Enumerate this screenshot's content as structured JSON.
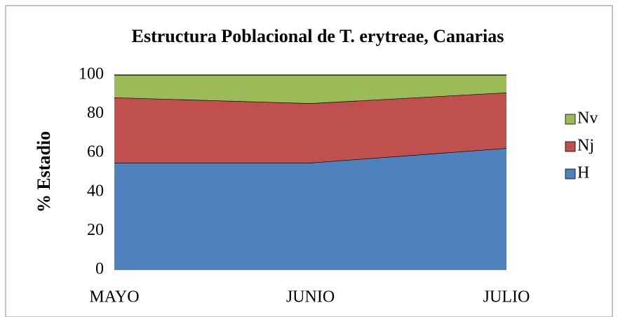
{
  "chart_data": {
    "type": "area",
    "stacked": true,
    "title": "Estructura Poblacional de T. erytreae, Canarias",
    "y_label": "% Estadio",
    "categories": [
      "MAYO",
      "JUNIO",
      "JULIO"
    ],
    "series": [
      {
        "name": "H",
        "color": "#4f81bd",
        "values": [
          55,
          55,
          62.5
        ]
      },
      {
        "name": "Nj",
        "color": "#c0504d",
        "values": [
          33.5,
          30.5,
          28.5
        ]
      },
      {
        "name": "Nv",
        "color": "#9bbb59",
        "values": [
          11.5,
          14.5,
          9
        ]
      }
    ],
    "ylim": [
      0,
      100
    ],
    "yticks": [
      0,
      20,
      40,
      60,
      80,
      100
    ],
    "grid": false,
    "legend": "right"
  }
}
